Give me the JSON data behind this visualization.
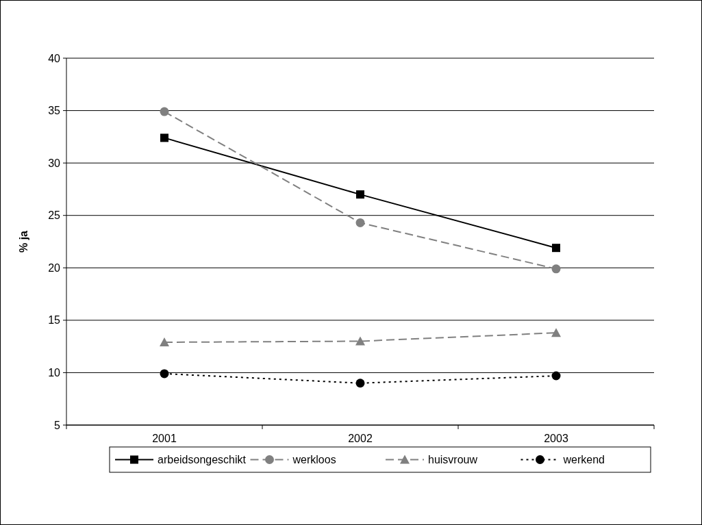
{
  "chart_data": {
    "type": "line",
    "ylabel": "% ja",
    "categories": [
      "2001",
      "2002",
      "2003"
    ],
    "ylim": [
      5,
      40
    ],
    "yticks": [
      5,
      10,
      15,
      20,
      25,
      30,
      35,
      40
    ],
    "grid": "y",
    "legend": "bottom",
    "series": [
      {
        "name": "arbeidsongeschikt",
        "color": "#000000",
        "marker": "square",
        "line_style": "solid",
        "values": [
          32.4,
          27.0,
          21.9
        ]
      },
      {
        "name": "werkloos",
        "color": "#808080",
        "marker": "circle",
        "line_style": "dashed",
        "values": [
          34.9,
          24.3,
          19.9
        ]
      },
      {
        "name": "huisvrouw",
        "color": "#808080",
        "marker": "triangle",
        "line_style": "dashed",
        "values": [
          12.9,
          13.0,
          13.8
        ]
      },
      {
        "name": "werkend",
        "color": "#000000",
        "marker": "circle",
        "line_style": "dotted",
        "values": [
          9.9,
          9.0,
          9.7
        ]
      }
    ]
  }
}
